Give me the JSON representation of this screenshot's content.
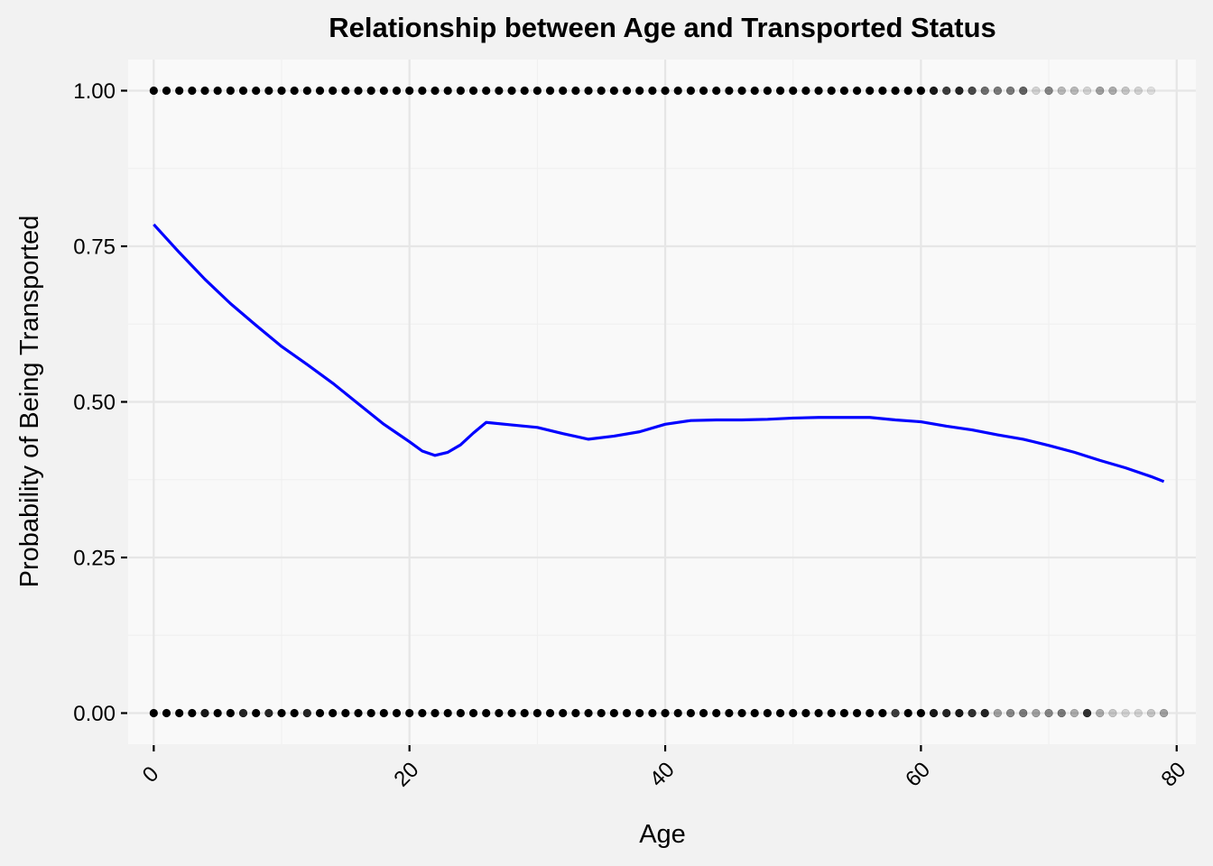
{
  "chart_data": {
    "type": "scatter",
    "title": "Relationship between Age and Transported Status",
    "xlabel": "Age",
    "ylabel": "Probability of Being Transported",
    "xlim": [
      -2,
      81.5
    ],
    "ylim": [
      -0.05,
      1.05
    ],
    "x_ticks": [
      0,
      20,
      40,
      60,
      80
    ],
    "x_tick_labels": [
      "0",
      "20",
      "40",
      "60",
      "80"
    ],
    "y_ticks": [
      0,
      0.25,
      0.5,
      0.75,
      1
    ],
    "y_tick_labels": [
      "0.00",
      "0.25",
      "0.50",
      "0.75",
      "1.00"
    ],
    "grid": true,
    "series": [
      {
        "type": "scatter",
        "note_style": "semi-transparent black points",
        "points_transported": {
          "y": 1,
          "x": [
            0,
            1,
            2,
            3,
            4,
            5,
            6,
            7,
            8,
            9,
            10,
            11,
            12,
            13,
            14,
            15,
            16,
            17,
            18,
            19,
            20,
            21,
            22,
            23,
            24,
            25,
            26,
            27,
            28,
            29,
            30,
            31,
            32,
            33,
            34,
            35,
            36,
            37,
            38,
            39,
            40,
            41,
            42,
            43,
            44,
            45,
            46,
            47,
            48,
            49,
            50,
            51,
            52,
            53,
            54,
            55,
            56,
            57,
            58,
            59,
            60,
            61,
            62,
            63,
            64,
            65,
            66,
            67,
            68,
            69,
            70,
            71,
            72,
            73,
            74,
            75,
            76,
            77,
            78
          ],
          "opacity": [
            1,
            1,
            1,
            1,
            1,
            1,
            1,
            1,
            1,
            1,
            1,
            1,
            1,
            1,
            1,
            1,
            1,
            1,
            1,
            1,
            1,
            1,
            1,
            1,
            1,
            1,
            1,
            1,
            1,
            1,
            1,
            1,
            1,
            1,
            1,
            1,
            1,
            1,
            1,
            1,
            1,
            1,
            1,
            1,
            1,
            1,
            1,
            1,
            1,
            1,
            1,
            1,
            1,
            1,
            1,
            1,
            1,
            1,
            1,
            1,
            1,
            0.9,
            0.75,
            0.85,
            0.7,
            0.55,
            0.5,
            0.5,
            0.6,
            0.15,
            0.45,
            0.25,
            0.25,
            0.15,
            0.35,
            0.3,
            0.2,
            0.15,
            0.1
          ]
        },
        "points_not_transported": {
          "y": 0,
          "x": [
            0,
            1,
            2,
            3,
            4,
            5,
            6,
            7,
            8,
            9,
            10,
            11,
            12,
            13,
            14,
            15,
            16,
            17,
            18,
            19,
            20,
            21,
            22,
            23,
            24,
            25,
            26,
            27,
            28,
            29,
            30,
            31,
            32,
            33,
            34,
            35,
            36,
            37,
            38,
            39,
            40,
            41,
            42,
            43,
            44,
            45,
            46,
            47,
            48,
            49,
            50,
            51,
            52,
            53,
            54,
            55,
            56,
            57,
            58,
            59,
            60,
            61,
            62,
            63,
            64,
            65,
            66,
            67,
            68,
            69,
            70,
            71,
            72,
            73,
            74,
            75,
            76,
            77,
            78,
            79
          ],
          "opacity": [
            1,
            1,
            1,
            1,
            0.9,
            1,
            1,
            0.85,
            1,
            0.85,
            1,
            1,
            0.85,
            1,
            1,
            1,
            1,
            1,
            1,
            1,
            1,
            1,
            1,
            1,
            1,
            1,
            1,
            1,
            1,
            1,
            1,
            1,
            1,
            1,
            1,
            1,
            1,
            1,
            1,
            1,
            1,
            1,
            1,
            1,
            1,
            1,
            1,
            1,
            1,
            1,
            1,
            1,
            1,
            1,
            1,
            1,
            1,
            1,
            0.75,
            1,
            1,
            0.9,
            0.85,
            0.9,
            0.8,
            0.85,
            0.35,
            0.45,
            0.5,
            0.35,
            0.45,
            0.5,
            0.3,
            0.8,
            0.3,
            0.2,
            0.15,
            0.15,
            0.2,
            0.35
          ]
        }
      },
      {
        "type": "line",
        "note_style": "smoothed probability curve",
        "color": "#0000ff",
        "x": [
          0,
          2,
          4,
          6,
          8,
          10,
          12,
          14,
          16,
          18,
          19,
          20,
          21,
          22,
          23,
          24,
          25,
          26,
          28,
          30,
          32,
          34,
          36,
          38,
          40,
          42,
          44,
          46,
          48,
          50,
          52,
          54,
          56,
          58,
          60,
          62,
          64,
          66,
          68,
          70,
          72,
          74,
          76,
          78,
          79
        ],
        "y": [
          0.785,
          0.74,
          0.697,
          0.658,
          0.623,
          0.589,
          0.56,
          0.53,
          0.497,
          0.464,
          0.45,
          0.436,
          0.421,
          0.414,
          0.419,
          0.431,
          0.45,
          0.467,
          0.463,
          0.459,
          0.449,
          0.44,
          0.445,
          0.452,
          0.464,
          0.47,
          0.471,
          0.471,
          0.472,
          0.474,
          0.475,
          0.475,
          0.475,
          0.471,
          0.468,
          0.461,
          0.455,
          0.447,
          0.44,
          0.43,
          0.419,
          0.406,
          0.394,
          0.38,
          0.372
        ]
      }
    ],
    "colors": {
      "page_background": "#f2f2f2",
      "panel_background": "#f9f9f9",
      "grid_major": "#e6e6e6",
      "grid_minor": "#efefef",
      "curve": "#0000ff",
      "points": "#000000"
    }
  }
}
